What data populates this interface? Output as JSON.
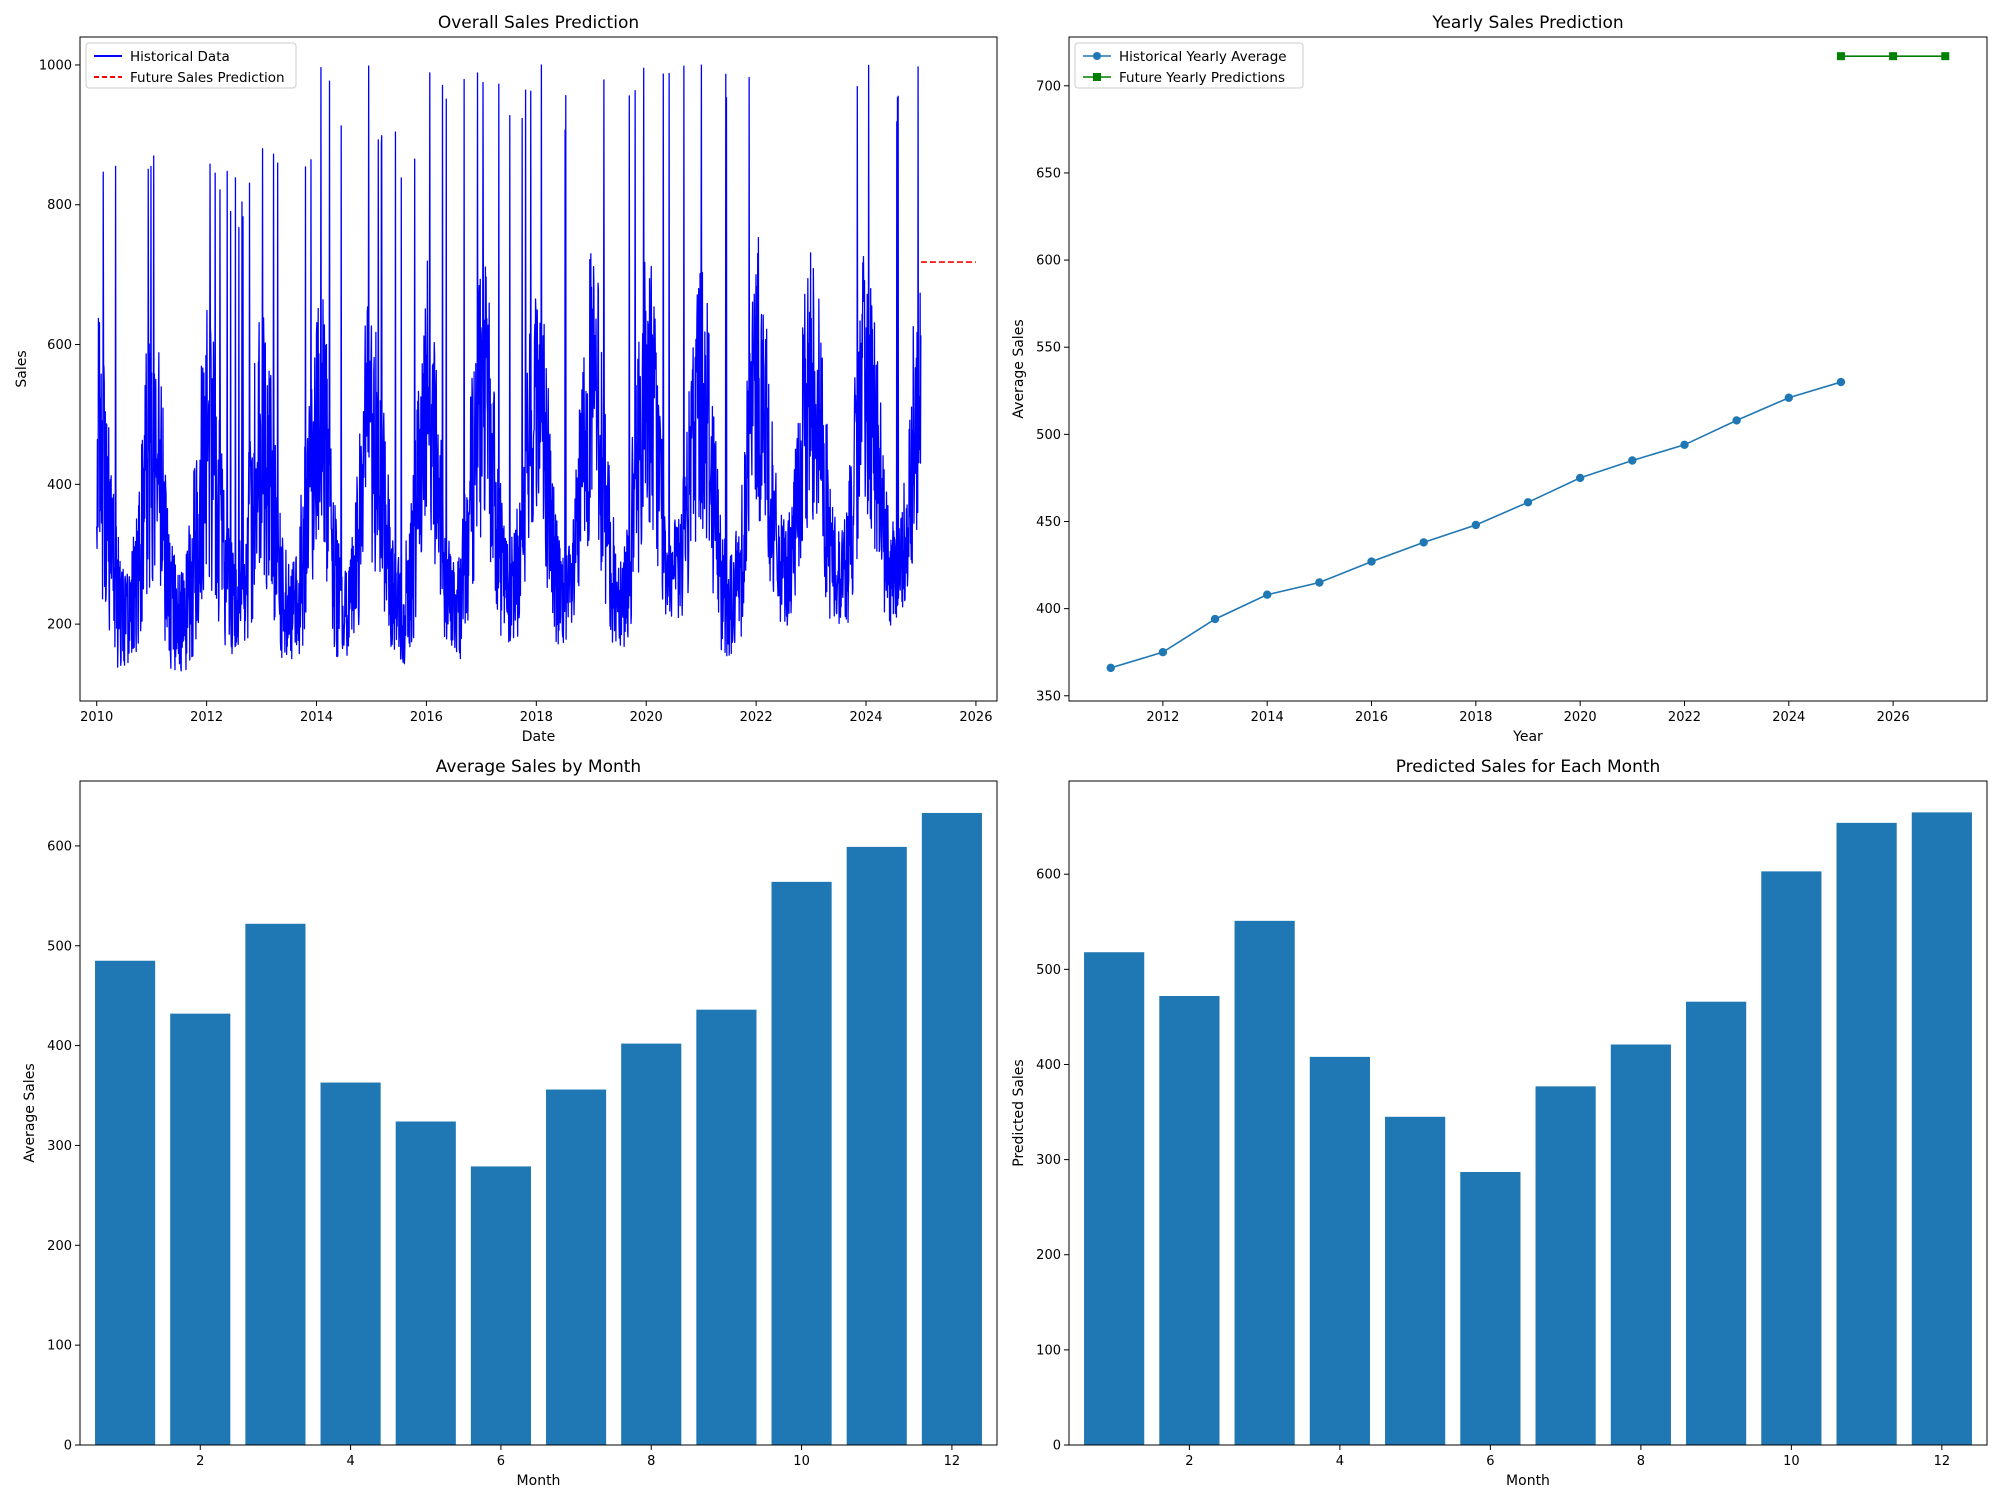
{
  "chart_data": [
    {
      "type": "line",
      "title": "Overall Sales Prediction",
      "xlabel": "Date",
      "ylabel": "Sales",
      "x_axis_kind": "date",
      "xlim": [
        "2009-09-12",
        "2026-05-21"
      ],
      "ylim": [
        90,
        1040
      ],
      "xticks": [
        "2010",
        "2012",
        "2014",
        "2016",
        "2018",
        "2020",
        "2022",
        "2024",
        "2026"
      ],
      "yticks": [
        200,
        400,
        600,
        800,
        1000
      ],
      "legend_position": "top-left",
      "grid": false,
      "series": [
        {
          "name": "Historical Data",
          "color": "#0000ff",
          "style": "solid",
          "note_granularity": "daily, values estimated as approximate seasonal envelope",
          "yearly_envelope": [
            {
              "year": 2010,
              "low": 135,
              "high": 855
            },
            {
              "year": 2011,
              "low": 125,
              "high": 870
            },
            {
              "year": 2012,
              "low": 155,
              "high": 860
            },
            {
              "year": 2013,
              "low": 145,
              "high": 880
            },
            {
              "year": 2014,
              "low": 135,
              "high": 1000
            },
            {
              "year": 2015,
              "low": 140,
              "high": 905
            },
            {
              "year": 2016,
              "low": 145,
              "high": 990
            },
            {
              "year": 2017,
              "low": 170,
              "high": 975
            },
            {
              "year": 2018,
              "low": 150,
              "high": 1000
            },
            {
              "year": 2019,
              "low": 165,
              "high": 1000
            },
            {
              "year": 2020,
              "low": 195,
              "high": 1000
            },
            {
              "year": 2021,
              "low": 150,
              "high": 1000
            },
            {
              "year": 2022,
              "low": 195,
              "high": 1000
            },
            {
              "year": 2023,
              "low": 190,
              "high": 1000
            },
            {
              "year": 2024,
              "low": 190,
              "high": 1000
            }
          ],
          "x_start": "2010-01-01",
          "x_end": "2024-12-31"
        },
        {
          "name": "Future Sales Prediction",
          "color": "#ff0000",
          "style": "dashed",
          "x": [
            "2025-01-01",
            "2025-12-31"
          ],
          "y": [
            718,
            718
          ]
        }
      ]
    },
    {
      "type": "line",
      "title": "Yearly Sales Prediction",
      "xlabel": "Year",
      "ylabel": "Average Sales",
      "xlim": [
        2010.2,
        2027.8
      ],
      "ylim": [
        347,
        728
      ],
      "xticks": [
        2012,
        2014,
        2016,
        2018,
        2020,
        2022,
        2024,
        2026
      ],
      "yticks": [
        350,
        400,
        450,
        500,
        550,
        600,
        650,
        700
      ],
      "legend_position": "top-left",
      "grid": false,
      "series": [
        {
          "name": "Historical Yearly Average",
          "color": "#1f77b4",
          "marker": "circle",
          "x": [
            2011,
            2012,
            2013,
            2014,
            2015,
            2016,
            2017,
            2018,
            2019,
            2020,
            2021,
            2022,
            2023,
            2024,
            2025
          ],
          "y": [
            366,
            375,
            394,
            408,
            415,
            427,
            438,
            448,
            461,
            475,
            485,
            494,
            508,
            521,
            530
          ]
        },
        {
          "name": "Future Yearly Predictions",
          "color": "#008000",
          "marker": "square",
          "x": [
            2025,
            2026,
            2027
          ],
          "y": [
            717,
            717,
            717
          ]
        }
      ]
    },
    {
      "type": "bar",
      "title": "Average Sales by Month",
      "xlabel": "Month",
      "ylabel": "Average Sales",
      "bar_color": "#1f77b4",
      "xlim": [
        0.4,
        12.6
      ],
      "ylim": [
        0,
        665
      ],
      "xticks": [
        2,
        4,
        6,
        8,
        10,
        12
      ],
      "yticks": [
        0,
        100,
        200,
        300,
        400,
        500,
        600
      ],
      "categories": [
        1,
        2,
        3,
        4,
        5,
        6,
        7,
        8,
        9,
        10,
        11,
        12
      ],
      "values": [
        485,
        432,
        522,
        363,
        324,
        279,
        356,
        402,
        436,
        564,
        599,
        633
      ],
      "grid": false
    },
    {
      "type": "bar",
      "title": "Predicted Sales for Each Month",
      "xlabel": "Month",
      "ylabel": "Predicted Sales",
      "bar_color": "#1f77b4",
      "xlim": [
        0.4,
        12.6
      ],
      "ylim": [
        0,
        698
      ],
      "xticks": [
        2,
        4,
        6,
        8,
        10,
        12
      ],
      "yticks": [
        0,
        100,
        200,
        300,
        400,
        500,
        600
      ],
      "categories": [
        1,
        2,
        3,
        4,
        5,
        6,
        7,
        8,
        9,
        10,
        11,
        12
      ],
      "values": [
        518,
        472,
        551,
        408,
        345,
        287,
        377,
        421,
        466,
        603,
        654,
        665
      ],
      "grid": false
    }
  ]
}
